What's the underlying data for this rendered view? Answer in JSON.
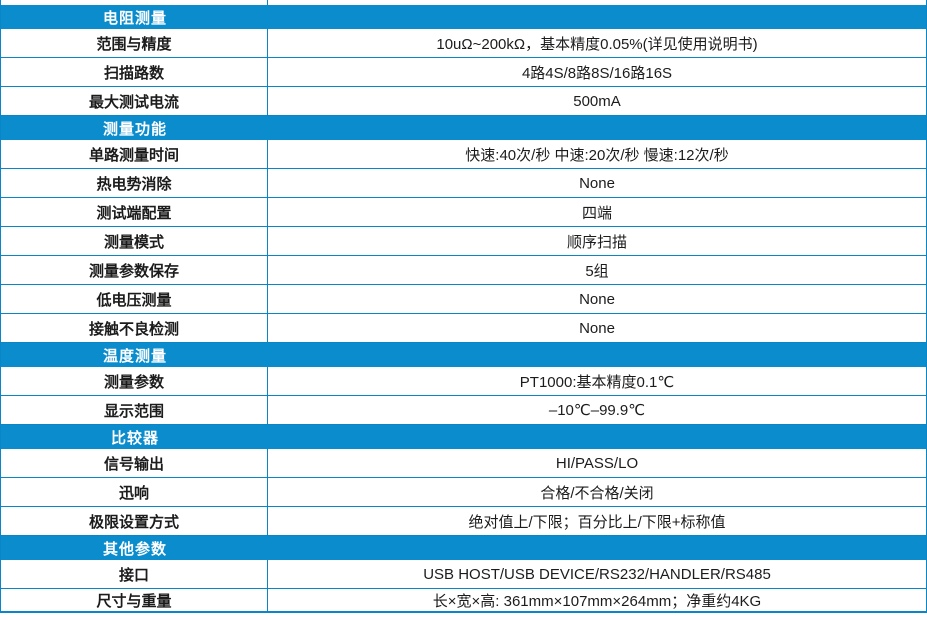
{
  "colors": {
    "header_bg": "#0a8ccd",
    "grid_line": "#0a86c8",
    "header_text": "#ffffff",
    "body_text": "#1c1c1c"
  },
  "table": {
    "sections": [
      {
        "header": "电阻测量",
        "rows": [
          {
            "label": "范围与精度",
            "value": "10uΩ~200kΩ，基本精度0.05%(详见使用说明书)"
          },
          {
            "label": "扫描路数",
            "value": "4路4S/8路8S/16路16S"
          },
          {
            "label": "最大测试电流",
            "value": "500mA"
          }
        ]
      },
      {
        "header": "测量功能",
        "rows": [
          {
            "label": "单路测量时间",
            "value": "快速:40次/秒 中速:20次/秒 慢速:12次/秒"
          },
          {
            "label": "热电势消除",
            "value": "None"
          },
          {
            "label": "测试端配置",
            "value": "四端"
          },
          {
            "label": "测量模式",
            "value": "顺序扫描"
          },
          {
            "label": "测量参数保存",
            "value": "5组"
          },
          {
            "label": "低电压测量",
            "value": "None"
          },
          {
            "label": "接触不良检测",
            "value": "None"
          }
        ]
      },
      {
        "header": "温度测量",
        "rows": [
          {
            "label": "测量参数",
            "value": "PT1000:基本精度0.1℃"
          },
          {
            "label": "显示范围",
            "value": "–10℃–99.9℃"
          }
        ]
      },
      {
        "header": "比较器",
        "rows": [
          {
            "label": "信号输出",
            "value": "HI/PASS/LO"
          },
          {
            "label": "迅响",
            "value": "合格/不合格/关闭"
          },
          {
            "label": "极限设置方式",
            "value": "绝对值上/下限；百分比上/下限+标称值"
          }
        ]
      },
      {
        "header": "其他参数",
        "rows": [
          {
            "label": "接口",
            "value": "USB HOST/USB DEVICE/RS232/HANDLER/RS485"
          },
          {
            "label": "尺寸与重量",
            "value": "长×宽×高: 361mm×107mm×264mm；净重约4KG"
          }
        ]
      }
    ]
  }
}
